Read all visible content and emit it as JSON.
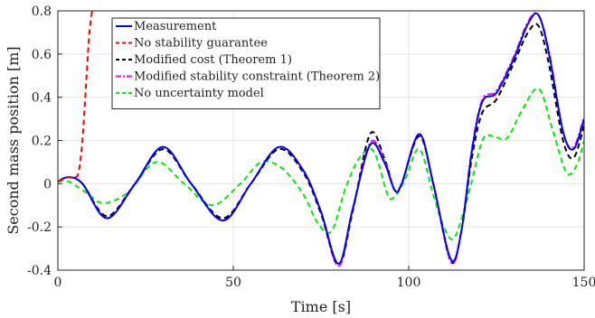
{
  "chart_data": {
    "type": "line",
    "title": "",
    "xlabel": "Time [s]",
    "ylabel": "Second mass position [m]",
    "xlim": [
      0,
      150
    ],
    "ylim": [
      -0.4,
      0.8
    ],
    "xticks": [
      0,
      50,
      100,
      150
    ],
    "yticks": [
      -0.4,
      -0.2,
      0,
      0.2,
      0.4,
      0.6,
      0.8
    ],
    "xtick_labels": [
      "0",
      "50",
      "100",
      "150"
    ],
    "ytick_labels": [
      "-0.4",
      "-0.2",
      "0",
      "0.2",
      "0.4",
      "0.6",
      "0.8"
    ],
    "grid": true,
    "legend_position": "top-left",
    "series": [
      {
        "name": "Measurement",
        "color": "#0000ff",
        "dash": "solid",
        "x": [
          0,
          3,
          7,
          14,
          22,
          30,
          38,
          47,
          55,
          63,
          70,
          75,
          80,
          84,
          89,
          93,
          96,
          98,
          103,
          107,
          112,
          115,
          118,
          121,
          125,
          130,
          134,
          137,
          140,
          144,
          147,
          150
        ],
        "y": [
          0.01,
          0.03,
          0.0,
          -0.16,
          0.0,
          0.17,
          0.0,
          -0.17,
          0.0,
          0.17,
          0.06,
          -0.13,
          -0.37,
          -0.12,
          0.18,
          0.1,
          -0.03,
          0.0,
          0.23,
          0.0,
          -0.35,
          -0.22,
          0.15,
          0.38,
          0.42,
          0.58,
          0.74,
          0.78,
          0.6,
          0.24,
          0.16,
          0.3
        ]
      },
      {
        "name": "No stability guarantee",
        "color": "#ff0000",
        "dash": "dashed",
        "x": [
          0,
          3,
          5,
          6,
          7,
          8,
          9,
          10
        ],
        "y": [
          0.01,
          0.03,
          0.03,
          0.06,
          0.2,
          0.45,
          0.7,
          0.82
        ]
      },
      {
        "name": "Modified cost (Theorem 1)",
        "color": "#000000",
        "dash": "dashed",
        "x": [
          0,
          3,
          7,
          14,
          22,
          30,
          38,
          47,
          55,
          63,
          70,
          75,
          80,
          84,
          89,
          93,
          96,
          98,
          103,
          107,
          112,
          115,
          118,
          121,
          125,
          130,
          134,
          137,
          140,
          144,
          147,
          150
        ],
        "y": [
          0.01,
          0.03,
          0.0,
          -0.15,
          0.0,
          0.16,
          0.0,
          -0.16,
          0.0,
          0.16,
          0.05,
          -0.14,
          -0.38,
          -0.13,
          0.23,
          0.12,
          -0.03,
          0.0,
          0.22,
          0.0,
          -0.36,
          -0.22,
          0.12,
          0.33,
          0.39,
          0.56,
          0.7,
          0.73,
          0.55,
          0.2,
          0.12,
          0.27
        ]
      },
      {
        "name": "Modified stability constraint (Theorem 2)",
        "color": "#ff00ff",
        "dash": "dashdot",
        "x": [
          0,
          3,
          7,
          14,
          22,
          30,
          38,
          47,
          55,
          63,
          70,
          75,
          80,
          84,
          89,
          93,
          96,
          98,
          103,
          107,
          112,
          115,
          118,
          121,
          125,
          130,
          134,
          137,
          140,
          144,
          147,
          150
        ],
        "y": [
          0.01,
          0.03,
          0.0,
          -0.16,
          0.0,
          0.17,
          0.0,
          -0.17,
          0.0,
          0.17,
          0.06,
          -0.13,
          -0.38,
          -0.12,
          0.19,
          0.11,
          -0.03,
          0.0,
          0.23,
          0.0,
          -0.36,
          -0.22,
          0.16,
          0.39,
          0.43,
          0.59,
          0.75,
          0.78,
          0.61,
          0.24,
          0.17,
          0.31
        ]
      },
      {
        "name": "No uncertainty model",
        "color": "#00ee00",
        "dash": "dashed",
        "x": [
          0,
          3,
          8,
          13,
          20,
          28,
          36,
          44,
          52,
          58,
          64,
          70,
          74,
          78,
          82,
          86,
          90,
          94,
          96,
          99,
          103,
          107,
          110,
          113,
          117,
          121,
          124,
          128,
          132,
          137,
          141,
          145,
          148,
          150
        ],
        "y": [
          0.01,
          0.01,
          -0.04,
          -0.09,
          -0.04,
          0.1,
          0.0,
          -0.1,
          0.0,
          0.1,
          0.07,
          -0.05,
          -0.18,
          -0.22,
          -0.02,
          0.12,
          0.15,
          -0.05,
          -0.06,
          0.02,
          0.16,
          -0.05,
          -0.2,
          -0.25,
          -0.05,
          0.2,
          0.22,
          0.21,
          0.33,
          0.44,
          0.25,
          0.05,
          0.09,
          0.2
        ]
      }
    ]
  }
}
